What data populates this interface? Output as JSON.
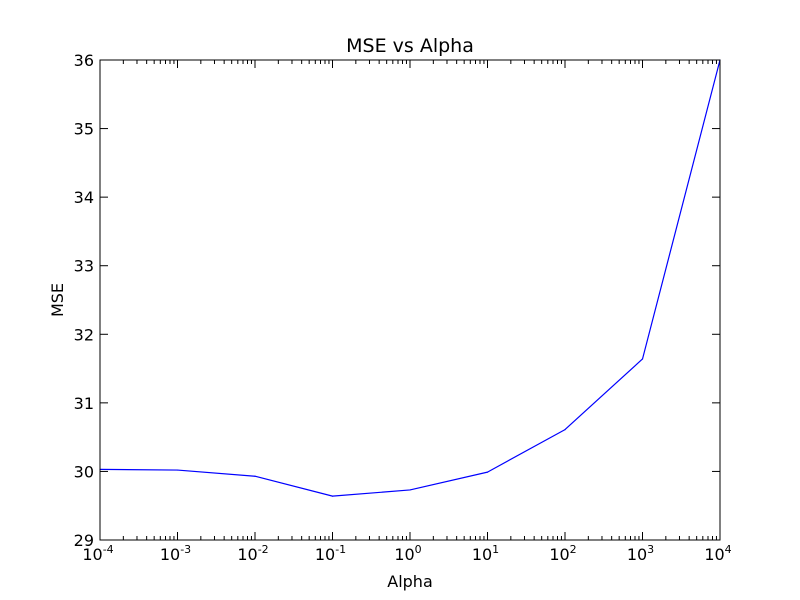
{
  "chart_data": {
    "type": "line",
    "title": "MSE vs Alpha",
    "xlabel": "Alpha",
    "ylabel": "MSE",
    "x_scale": "log",
    "x_tick_labels": [
      {
        "base": "10",
        "exp": "-4"
      },
      {
        "base": "10",
        "exp": "-3"
      },
      {
        "base": "10",
        "exp": "-2"
      },
      {
        "base": "10",
        "exp": "-1"
      },
      {
        "base": "10",
        "exp": "0"
      },
      {
        "base": "10",
        "exp": "1"
      },
      {
        "base": "10",
        "exp": "2"
      },
      {
        "base": "10",
        "exp": "3"
      },
      {
        "base": "10",
        "exp": "4"
      }
    ],
    "y_ticks": [
      29,
      30,
      31,
      32,
      33,
      34,
      35,
      36
    ],
    "xlim": [
      0.0001,
      10000
    ],
    "ylim": [
      29,
      36
    ],
    "grid": false,
    "line_color": "#0000ff",
    "series": [
      {
        "x": [
          0.0001,
          0.001,
          0.01,
          0.1,
          1,
          10,
          100,
          1000,
          10000
        ],
        "values": [
          30.03,
          30.02,
          29.93,
          29.64,
          29.73,
          29.99,
          30.61,
          31.64,
          36.0
        ]
      }
    ]
  }
}
